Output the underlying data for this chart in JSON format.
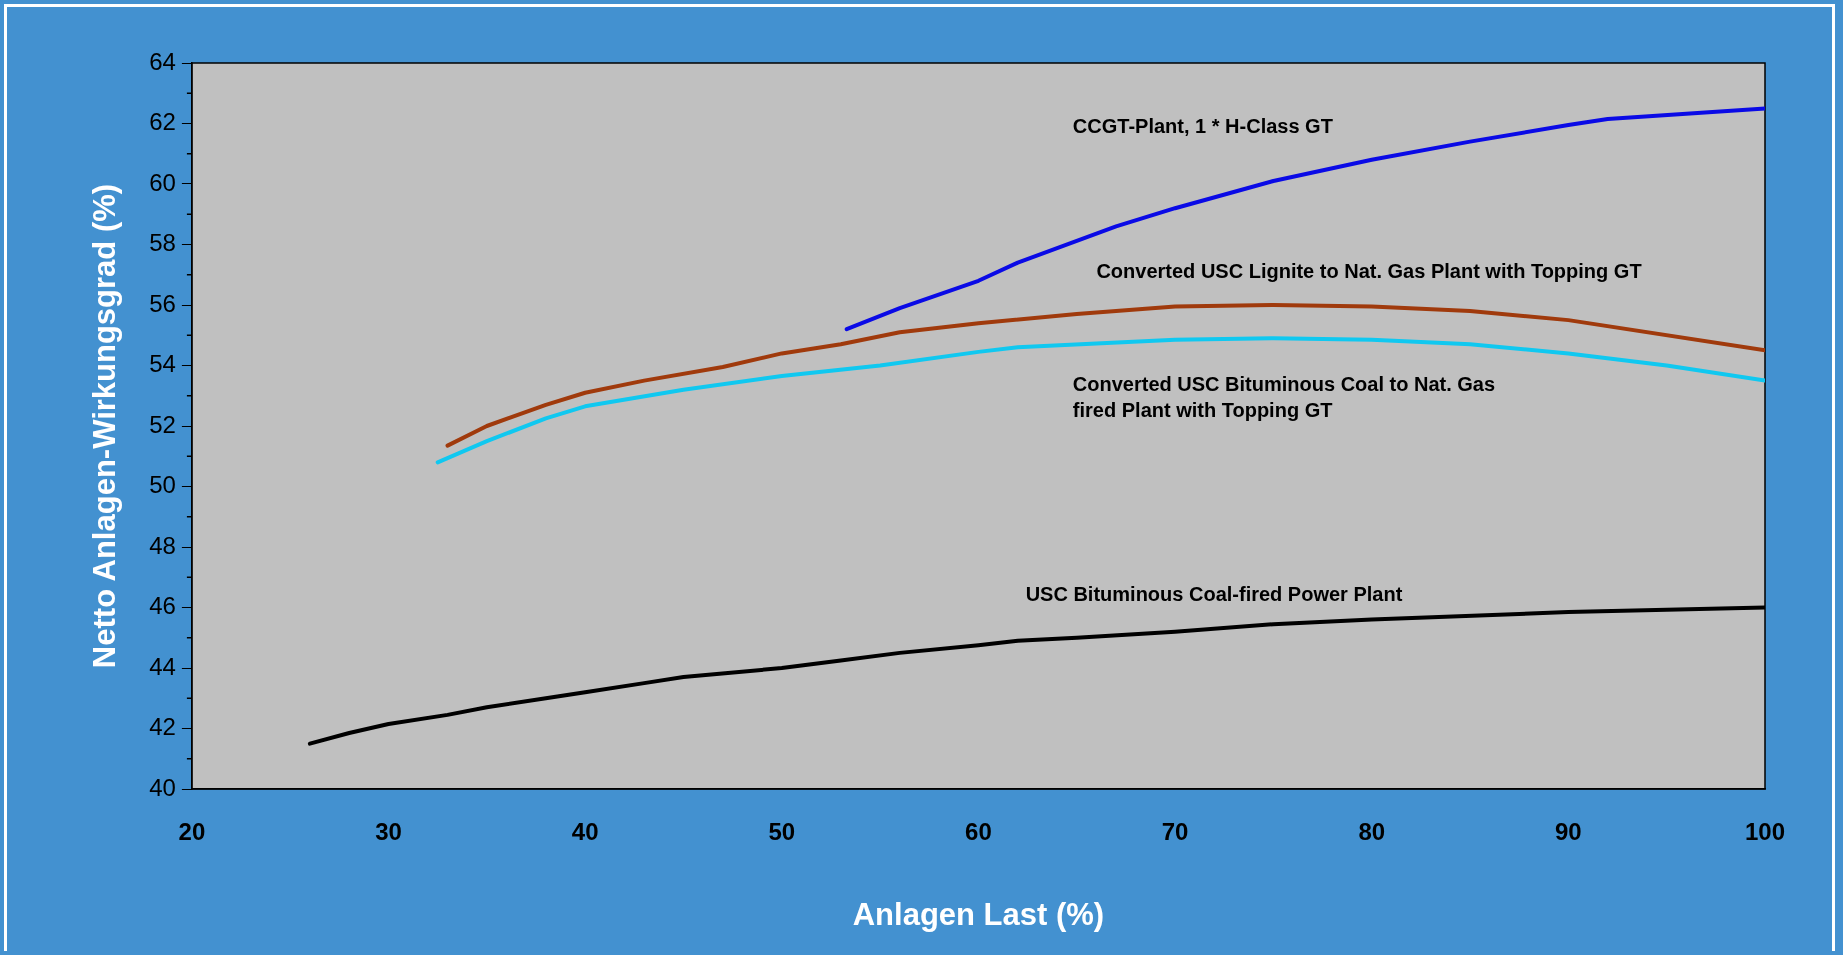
{
  "chart_data": {
    "type": "line",
    "xlabel": "Anlagen Last (%)",
    "ylabel": "Netto Anlagen-Wirkungsgrad (%)",
    "xlim": [
      20,
      100
    ],
    "xticks": [
      20,
      30,
      40,
      50,
      60,
      70,
      80,
      90,
      100
    ],
    "ylim": [
      40,
      64
    ],
    "yticks": [
      40,
      42,
      44,
      46,
      48,
      50,
      52,
      54,
      56,
      58,
      60,
      62,
      64
    ],
    "grid": false,
    "legend": false,
    "marker": "none",
    "line_style": "solid",
    "series": [
      {
        "name": "CCGT-Plant, 1 * H-Class GT",
        "color": "#0a0ae6",
        "x": [
          53.3,
          56,
          60,
          62,
          67,
          70,
          75,
          80,
          85,
          90,
          92,
          100
        ],
        "values": [
          55.2,
          55.9,
          56.8,
          57.4,
          58.6,
          59.2,
          60.1,
          60.8,
          61.4,
          61.95,
          62.15,
          62.5
        ]
      },
      {
        "name": "Converted USC Lignite to Nat. Gas Plant with Topping GT",
        "color": "#a03a0c",
        "x": [
          33,
          35,
          38,
          40,
          43,
          47,
          50,
          53,
          56,
          60,
          65,
          70,
          75,
          80,
          85,
          90,
          100
        ],
        "values": [
          51.35,
          52.0,
          52.7,
          53.1,
          53.5,
          53.95,
          54.4,
          54.7,
          55.1,
          55.4,
          55.7,
          55.95,
          56.0,
          55.95,
          55.8,
          55.5,
          54.5
        ]
      },
      {
        "name": "Converted USC Bituminous Coal to Nat. Gas fired Plant with Topping GT",
        "color": "#10c8f0",
        "x": [
          32.5,
          35,
          38,
          40,
          45,
          50,
          55,
          60,
          62,
          70,
          75,
          80,
          85,
          90,
          95,
          100
        ],
        "values": [
          50.8,
          51.5,
          52.25,
          52.65,
          53.2,
          53.65,
          54.0,
          54.45,
          54.6,
          54.85,
          54.9,
          54.85,
          54.7,
          54.4,
          54.0,
          53.5
        ]
      },
      {
        "name": "USC Bituminous Coal-fired Power Plant",
        "color": "#000000",
        "x": [
          26,
          28,
          30,
          33,
          35,
          38,
          40,
          43,
          45,
          50,
          53,
          56,
          60,
          62,
          65,
          70,
          75,
          80,
          90,
          100
        ],
        "values": [
          41.5,
          41.85,
          42.15,
          42.45,
          42.7,
          43.0,
          43.2,
          43.5,
          43.7,
          44.0,
          44.25,
          44.5,
          44.75,
          44.9,
          45.0,
          45.2,
          45.45,
          45.6,
          45.85,
          46.0
        ]
      }
    ]
  }
}
